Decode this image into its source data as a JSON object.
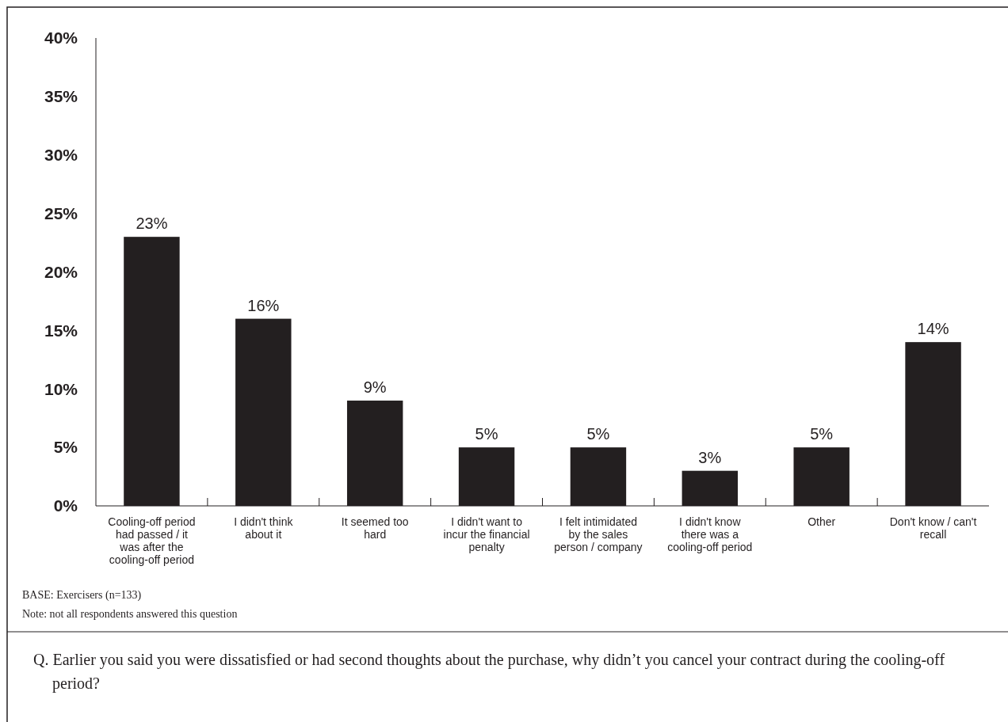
{
  "chart_data": {
    "type": "bar",
    "categories": [
      "Cooling-off period had passed / it was after the cooling-off period",
      "I didn't think about it",
      "It seemed too hard",
      "I didn't want to incur the financial penalty",
      "I felt intimidated by the sales person / company",
      "I didn't know there was a cooling-off period",
      "Other",
      "Don't know / can't recall"
    ],
    "values": [
      23,
      16,
      9,
      5,
      5,
      3,
      5,
      14
    ],
    "color": "#231f20",
    "ylim": [
      0,
      40
    ],
    "yticks": [
      {
        "value": 0,
        "label": "0%"
      },
      {
        "value": 5,
        "label": "5%"
      },
      {
        "value": 10,
        "label": "10%"
      },
      {
        "value": 15,
        "label": "15%"
      },
      {
        "value": 20,
        "label": "20%"
      },
      {
        "value": 25,
        "label": "25%"
      },
      {
        "value": 30,
        "label": "30%"
      },
      {
        "value": 35,
        "label": "35%"
      },
      {
        "value": 40,
        "label": "40%"
      }
    ],
    "value_labels": [
      "23%",
      "16%",
      "9%",
      "5%",
      "5%",
      "3%",
      "5%",
      "14%"
    ],
    "grid": false,
    "annotations": [
      "BASE: Exercisers (n=133)",
      "Note: not all respondents answered this question",
      "Q. Earlier you said you were dissatisfied or had second thoughts about the purchase, why didn’t you cancel your contract during the cooling-off period?"
    ]
  }
}
